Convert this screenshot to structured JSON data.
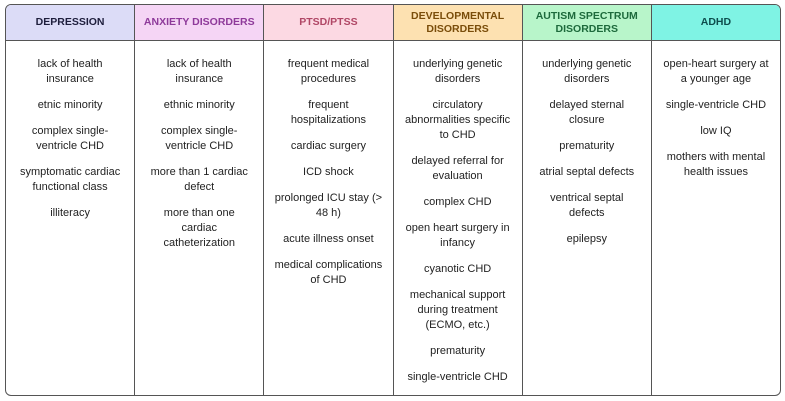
{
  "table": {
    "columns": [
      {
        "title": "DEPRESSION",
        "items": [
          "lack of health insurance",
          "etnic minority",
          "complex single-ventricle CHD",
          "symptomatic cardiac functional class",
          "illiteracy"
        ]
      },
      {
        "title": "ANXIETY DISORDERS",
        "items": [
          "lack of health insurance",
          "ethnic minority",
          "complex single-ventricle CHD",
          "more than 1 cardiac defect",
          "more than one cardiac catheterization"
        ]
      },
      {
        "title": "PTSD/PTSS",
        "items": [
          "frequent medical procedures",
          "frequent hospitalizations",
          "cardiac surgery",
          "ICD shock",
          "prolonged ICU stay (> 48 h)",
          "acute illness onset",
          "medical complications of CHD"
        ]
      },
      {
        "title": "DEVELOPMENTAL DISORDERS",
        "items": [
          "underlying genetic disorders",
          "circulatory abnormalities specific to CHD",
          "delayed referral for evaluation",
          "complex CHD",
          "open heart surgery in infancy",
          "cyanotic CHD",
          "mechanical support during treatment (ECMO, etc.)",
          "prematurity",
          "single-ventricle CHD"
        ]
      },
      {
        "title": "AUTISM SPECTRUM DISORDERS",
        "items": [
          "underlying genetic disorders",
          "delayed sternal closure",
          "prematurity",
          "atrial septal defects",
          "ventrical septal defects",
          "epilepsy"
        ]
      },
      {
        "title": "ADHD",
        "items": [
          "open-heart surgery at a younger age",
          "single-ventricle CHD",
          "low IQ",
          "mothers with mental health issues"
        ]
      }
    ]
  }
}
